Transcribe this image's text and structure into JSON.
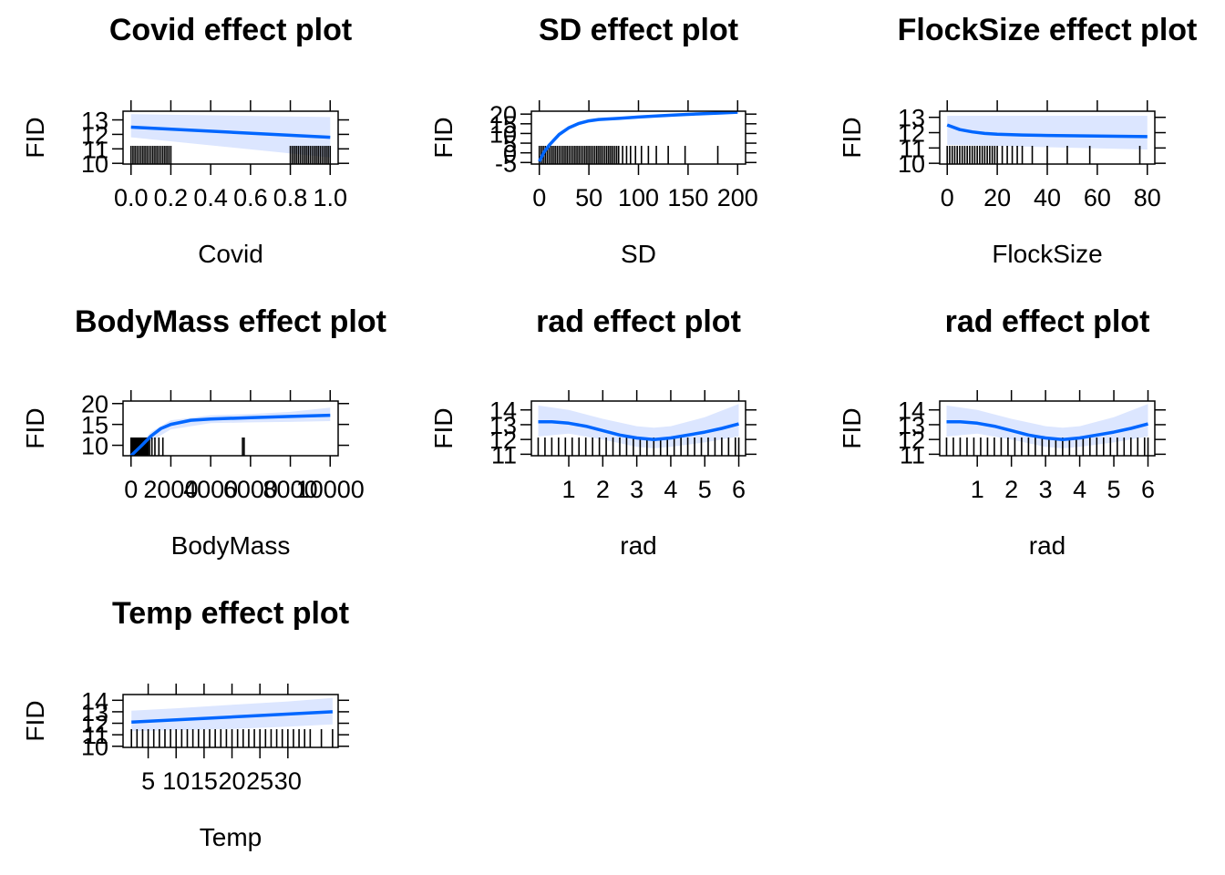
{
  "chart_data": [
    {
      "type": "line",
      "title": "Covid effect plot",
      "xlabel": "Covid",
      "ylabel": "FID",
      "xlim": [
        -0.04,
        1.04
      ],
      "ylim": [
        9.95,
        13.6
      ],
      "x_ticks": [
        0.0,
        0.2,
        0.4,
        0.6,
        0.8,
        1.0
      ],
      "x_tick_labels": [
        "0.0",
        "0.2",
        "0.4",
        "0.6",
        "0.8",
        "1.0"
      ],
      "y_ticks": [
        10,
        11,
        12,
        13
      ],
      "y_tick_labels": [
        "10",
        "11",
        "12",
        "13"
      ],
      "fit": {
        "x": [
          0,
          1
        ],
        "y": [
          12.5,
          11.8
        ]
      },
      "band": {
        "x": [
          0,
          1
        ],
        "lower": [
          11.8,
          10.4
        ],
        "upper": [
          13.4,
          13.2
        ]
      },
      "rug": [
        0.0,
        0.01,
        0.02,
        0.03,
        0.04,
        0.05,
        0.06,
        0.07,
        0.08,
        0.09,
        0.1,
        0.11,
        0.12,
        0.13,
        0.14,
        0.15,
        0.16,
        0.17,
        0.18,
        0.19,
        0.2,
        0.8,
        0.81,
        0.82,
        0.83,
        0.84,
        0.85,
        0.86,
        0.87,
        0.88,
        0.89,
        0.9,
        0.91,
        0.92,
        0.93,
        0.94,
        0.95,
        0.96,
        0.97,
        0.98,
        0.99,
        1.0
      ]
    },
    {
      "type": "line",
      "title": "SD effect plot",
      "xlabel": "SD",
      "ylabel": "FID",
      "xlim": [
        -8,
        208
      ],
      "ylim": [
        -5.8,
        21.5
      ],
      "x_ticks": [
        0,
        50,
        100,
        150,
        200
      ],
      "x_tick_labels": [
        "0",
        "50",
        "100",
        "150",
        "200"
      ],
      "y_ticks": [
        -5,
        0,
        5,
        10,
        15,
        20
      ],
      "y_tick_labels": [
        "-5",
        "0",
        "5",
        "10",
        "15",
        "20"
      ],
      "fit": {
        "x": [
          0,
          5,
          10,
          20,
          30,
          40,
          50,
          60,
          80,
          100,
          120,
          140,
          160,
          180,
          200
        ],
        "y": [
          -4.5,
          0.5,
          4,
          9.5,
          13,
          15.2,
          16.5,
          17.2,
          17.8,
          18.5,
          19.1,
          19.6,
          20.1,
          20.5,
          21
        ]
      },
      "band": {
        "x": [
          0,
          200
        ],
        "lower": [
          -4.5,
          21
        ],
        "upper": [
          -4.5,
          21
        ]
      },
      "rug": [
        0,
        2,
        4,
        6,
        8,
        10,
        12,
        14,
        16,
        18,
        20,
        22,
        24,
        26,
        28,
        30,
        32,
        34,
        36,
        38,
        40,
        42,
        44,
        46,
        48,
        50,
        52,
        54,
        56,
        58,
        60,
        62,
        64,
        66,
        68,
        70,
        72,
        74,
        76,
        78,
        80,
        84,
        88,
        92,
        97,
        103,
        110,
        118,
        130,
        147,
        180
      ]
    },
    {
      "type": "line",
      "title": "FlockSize effect plot",
      "xlabel": "FlockSize",
      "ylabel": "FID",
      "xlim": [
        -3,
        83
      ],
      "ylim": [
        9.95,
        13.4
      ],
      "x_ticks": [
        0,
        20,
        40,
        60,
        80
      ],
      "x_tick_labels": [
        "0",
        "20",
        "40",
        "60",
        "80"
      ],
      "y_ticks": [
        10,
        11,
        12,
        13
      ],
      "y_tick_labels": [
        "10",
        "11",
        "12",
        "13"
      ],
      "fit": {
        "x": [
          0,
          5,
          10,
          15,
          20,
          30,
          40,
          60,
          80
        ],
        "y": [
          12.5,
          12.2,
          12.05,
          11.95,
          11.9,
          11.85,
          11.82,
          11.78,
          11.74
        ]
      },
      "band": {
        "x": [
          0,
          80
        ],
        "lower": [
          11.2,
          10.9
        ],
        "upper": [
          13.1,
          13.1
        ]
      },
      "rug": [
        0,
        1,
        2,
        3,
        4,
        5,
        6,
        7,
        8,
        9,
        10,
        11,
        12,
        13,
        14,
        15,
        16,
        17,
        18,
        19,
        20,
        22,
        24,
        26,
        28,
        30,
        34,
        40,
        48,
        57,
        77
      ]
    },
    {
      "type": "line",
      "title": "BodyMass effect plot",
      "xlabel": "BodyMass",
      "ylabel": "FID",
      "xlim": [
        -400,
        10400
      ],
      "ylim": [
        7.5,
        20.6
      ],
      "x_ticks": [
        0,
        2000,
        4000,
        6000,
        8000,
        10000
      ],
      "x_tick_labels": [
        "0",
        "2000",
        "4000",
        "6000",
        "8000",
        "10000"
      ],
      "y_ticks": [
        10,
        15,
        20
      ],
      "y_tick_labels": [
        "10",
        "15",
        "20"
      ],
      "fit": {
        "x": [
          0,
          500,
          1000,
          1500,
          2000,
          3000,
          4000,
          6000,
          8000,
          10000
        ],
        "y": [
          7.5,
          9.8,
          12.2,
          14,
          15,
          16,
          16.3,
          16.6,
          16.9,
          17.2
        ]
      },
      "band": {
        "x": [
          0,
          1000,
          2000,
          4000,
          6000,
          8000,
          10000
        ],
        "lower": [
          7.5,
          11,
          13.8,
          15.3,
          15.5,
          15.6,
          15.8
        ],
        "upper": [
          7.5,
          13.2,
          16,
          17.2,
          17.5,
          18,
          19
        ]
      },
      "rug": [
        0,
        40,
        80,
        120,
        160,
        200,
        240,
        280,
        320,
        360,
        400,
        440,
        480,
        520,
        560,
        600,
        640,
        680,
        720,
        760,
        800,
        860,
        930,
        1050,
        1200,
        1400,
        1600,
        5600,
        5680
      ]
    },
    {
      "type": "line",
      "title": "rad effect plot",
      "xlabel": "rad",
      "ylabel": "FID",
      "xlim": [
        -0.1,
        6.2
      ],
      "ylim": [
        10.9,
        14.6
      ],
      "x_ticks": [
        1,
        2,
        3,
        4,
        5,
        6
      ],
      "x_tick_labels": [
        "1",
        "2",
        "3",
        "4",
        "5",
        "6"
      ],
      "y_ticks": [
        11,
        12,
        13,
        14
      ],
      "y_tick_labels": [
        "11",
        "12",
        "13",
        "14"
      ],
      "fit": {
        "x": [
          0.1,
          0.5,
          1,
          1.5,
          2,
          2.5,
          3,
          3.5,
          4,
          4.5,
          5,
          5.5,
          6
        ],
        "y": [
          13.2,
          13.2,
          13.1,
          12.9,
          12.6,
          12.3,
          12.1,
          12.0,
          12.1,
          12.3,
          12.5,
          12.75,
          13.05
        ]
      },
      "band": {
        "x": [
          0.1,
          1,
          2,
          3,
          3.5,
          4,
          5,
          6
        ],
        "lower": [
          12.2,
          12.4,
          12.0,
          11.5,
          11.4,
          11.5,
          11.8,
          12.2
        ],
        "upper": [
          14.3,
          14.0,
          13.4,
          12.9,
          12.8,
          12.9,
          13.5,
          14.4
        ]
      },
      "rug": [
        0.1,
        0.3,
        0.5,
        0.7,
        0.9,
        1.1,
        1.3,
        1.5,
        1.7,
        1.9,
        2.1,
        2.3,
        2.5,
        2.7,
        2.9,
        3.1,
        3.3,
        3.5,
        3.7,
        3.9,
        4.1,
        4.3,
        4.5,
        4.7,
        4.9,
        5.1,
        5.3,
        5.5,
        5.7,
        5.9,
        6.0
      ]
    },
    {
      "type": "line",
      "title": "rad effect plot",
      "xlabel": "rad",
      "ylabel": "FID",
      "xlim": [
        -0.1,
        6.2
      ],
      "ylim": [
        10.9,
        14.6
      ],
      "x_ticks": [
        1,
        2,
        3,
        4,
        5,
        6
      ],
      "x_tick_labels": [
        "1",
        "2",
        "3",
        "4",
        "5",
        "6"
      ],
      "y_ticks": [
        11,
        12,
        13,
        14
      ],
      "y_tick_labels": [
        "11",
        "12",
        "13",
        "14"
      ],
      "fit": {
        "x": [
          0.1,
          0.5,
          1,
          1.5,
          2,
          2.5,
          3,
          3.5,
          4,
          4.5,
          5,
          5.5,
          6
        ],
        "y": [
          13.2,
          13.2,
          13.1,
          12.9,
          12.6,
          12.3,
          12.1,
          12.0,
          12.1,
          12.3,
          12.5,
          12.75,
          13.05
        ]
      },
      "band": {
        "x": [
          0.1,
          1,
          2,
          3,
          3.5,
          4,
          5,
          6
        ],
        "lower": [
          12.2,
          12.4,
          12.0,
          11.5,
          11.4,
          11.5,
          11.8,
          12.2
        ],
        "upper": [
          14.3,
          14.0,
          13.4,
          12.9,
          12.8,
          12.9,
          13.5,
          14.4
        ]
      },
      "rug": [
        0.1,
        0.3,
        0.5,
        0.7,
        0.9,
        1.1,
        1.3,
        1.5,
        1.7,
        1.9,
        2.1,
        2.3,
        2.5,
        2.7,
        2.9,
        3.1,
        3.3,
        3.5,
        3.7,
        3.9,
        4.1,
        4.3,
        4.5,
        4.7,
        4.9,
        5.1,
        5.3,
        5.5,
        5.7,
        5.9,
        6.0
      ]
    },
    {
      "type": "line",
      "title": "Temp effect plot",
      "xlabel": "Temp",
      "ylabel": "FID",
      "xlim": [
        0.5,
        39
      ],
      "ylim": [
        9.9,
        14.5
      ],
      "x_ticks": [
        5,
        10,
        15,
        20,
        25,
        30
      ],
      "x_tick_labels": [
        "5",
        "10",
        "15",
        "20",
        "25",
        "30"
      ],
      "y_ticks": [
        10,
        11,
        12,
        13,
        14
      ],
      "y_tick_labels": [
        "10",
        "11",
        "12",
        "13",
        "14"
      ],
      "fit": {
        "x": [
          2,
          38
        ],
        "y": [
          12.1,
          13.0
        ]
      },
      "band": {
        "x": [
          2,
          10,
          20,
          30,
          38
        ],
        "lower": [
          11.3,
          11.4,
          11.5,
          11.7,
          11.9
        ],
        "upper": [
          13.1,
          13.3,
          13.6,
          13.9,
          14.2
        ]
      },
      "rug": [
        2,
        3,
        4,
        5,
        6,
        7,
        8,
        9,
        10,
        11,
        12,
        13,
        14,
        15,
        16,
        17,
        18,
        19,
        20,
        21,
        22,
        23,
        24,
        25,
        26,
        27,
        28,
        29,
        30,
        31,
        32,
        33,
        34,
        36,
        38
      ]
    }
  ],
  "colors": {
    "fit": "#0066ff",
    "band": "#dce6ff",
    "rug": "#000000",
    "frame": "#000000",
    "text": "#000000"
  }
}
